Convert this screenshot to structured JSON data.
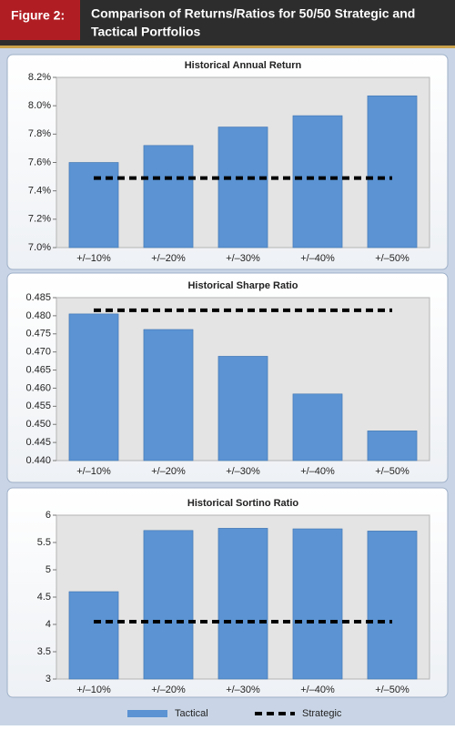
{
  "figure_label": "Figure 2:",
  "figure_title": [
    "Comparison of Returns/Ratios for 50/50 Strategic and",
    "Tactical Portfolios"
  ],
  "chart_data": [
    {
      "type": "bar",
      "title": "Historical Annual Return",
      "categories": [
        "+/–10%",
        "+/–20%",
        "+/–30%",
        "+/–40%",
        "+/–50%"
      ],
      "series": [
        {
          "name": "Tactical",
          "color": "#5b93d3",
          "style": "bar",
          "values": [
            7.6,
            7.72,
            7.85,
            7.93,
            8.07
          ]
        },
        {
          "name": "Strategic",
          "color": "#000000",
          "style": "dashed",
          "values": [
            7.49,
            7.49,
            7.49,
            7.49,
            7.49
          ]
        }
      ],
      "ylim": [
        7.0,
        8.2
      ],
      "yticks": [
        {
          "value": 7.0,
          "label": "7.0%"
        },
        {
          "value": 7.2,
          "label": "7.2%"
        },
        {
          "value": 7.4,
          "label": "7.4%"
        },
        {
          "value": 7.6,
          "label": "7.6%"
        },
        {
          "value": 7.8,
          "label": "7.8%"
        },
        {
          "value": 8.0,
          "label": "8.0%"
        },
        {
          "value": 8.2,
          "label": "8.2%"
        }
      ],
      "grid": false
    },
    {
      "type": "bar",
      "title": "Historical Sharpe Ratio",
      "categories": [
        "+/–10%",
        "+/–20%",
        "+/–30%",
        "+/–40%",
        "+/–50%"
      ],
      "series": [
        {
          "name": "Tactical",
          "color": "#5b93d3",
          "style": "bar",
          "values": [
            0.4805,
            0.4762,
            0.4688,
            0.4584,
            0.4482
          ]
        },
        {
          "name": "Strategic",
          "color": "#000000",
          "style": "dashed",
          "values": [
            0.4815,
            0.4815,
            0.4815,
            0.4815,
            0.4815
          ]
        }
      ],
      "ylim": [
        0.44,
        0.485
      ],
      "yticks": [
        {
          "value": 0.44,
          "label": "0.440"
        },
        {
          "value": 0.445,
          "label": "0.445"
        },
        {
          "value": 0.45,
          "label": "0.450"
        },
        {
          "value": 0.455,
          "label": "0.455"
        },
        {
          "value": 0.46,
          "label": "0.460"
        },
        {
          "value": 0.465,
          "label": "0.465"
        },
        {
          "value": 0.47,
          "label": "0.470"
        },
        {
          "value": 0.475,
          "label": "0.475"
        },
        {
          "value": 0.48,
          "label": "0.480"
        },
        {
          "value": 0.485,
          "label": "0.485"
        }
      ],
      "grid": false
    },
    {
      "type": "bar",
      "title": "Historical Sortino Ratio",
      "categories": [
        "+/–10%",
        "+/–20%",
        "+/–30%",
        "+/–40%",
        "+/–50%"
      ],
      "series": [
        {
          "name": "Tactical",
          "color": "#5b93d3",
          "style": "bar",
          "values": [
            4.6,
            5.72,
            5.76,
            5.75,
            5.71
          ]
        },
        {
          "name": "Strategic",
          "color": "#000000",
          "style": "dashed",
          "values": [
            4.05,
            4.05,
            4.05,
            4.05,
            4.05
          ]
        }
      ],
      "ylim": [
        3,
        6
      ],
      "yticks": [
        3,
        3.5,
        4,
        4.5,
        5,
        5.5,
        6
      ],
      "grid": false
    }
  ]
}
